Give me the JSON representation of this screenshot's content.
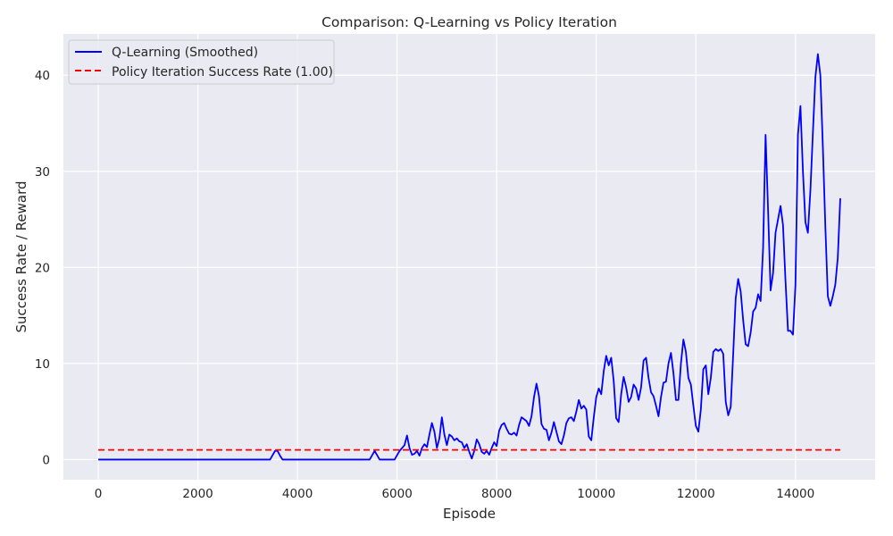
{
  "chart_data": {
    "type": "line",
    "title": "Comparison: Q-Learning vs Policy Iteration",
    "xlabel": "Episode",
    "ylabel": "Success Rate / Reward",
    "xlim": [
      -700,
      15600
    ],
    "ylim": [
      -2.1,
      44.3
    ],
    "xticks": [
      0,
      2000,
      4000,
      6000,
      8000,
      10000,
      12000,
      14000
    ],
    "yticks": [
      0,
      10,
      20,
      30,
      40
    ],
    "grid": true,
    "legend_position": "top-left",
    "background": "#eaeaf2",
    "series": [
      {
        "name": "Q-Learning (Smoothed)",
        "color": "#0000ff",
        "style": "solid",
        "x": [
          0,
          3450,
          3550,
          3600,
          3650,
          3700,
          3750,
          5450,
          5550,
          5650,
          5950,
          6050,
          6150,
          6200,
          6250,
          6300,
          6350,
          6400,
          6450,
          6500,
          6550,
          6600,
          6650,
          6700,
          6750,
          6800,
          6850,
          6900,
          6950,
          7000,
          7050,
          7100,
          7150,
          7200,
          7250,
          7300,
          7350,
          7400,
          7450,
          7500,
          7550,
          7600,
          7650,
          7700,
          7750,
          7800,
          7850,
          7900,
          7950,
          8000,
          8050,
          8100,
          8150,
          8200,
          8250,
          8300,
          8350,
          8400,
          8450,
          8500,
          8550,
          8600,
          8650,
          8700,
          8750,
          8800,
          8850,
          8900,
          8950,
          9000,
          9050,
          9100,
          9150,
          9200,
          9250,
          9300,
          9350,
          9400,
          9450,
          9500,
          9550,
          9600,
          9650,
          9700,
          9750,
          9800,
          9850,
          9900,
          9950,
          10000,
          10050,
          10100,
          10150,
          10200,
          10250,
          10300,
          10350,
          10400,
          10450,
          10500,
          10550,
          10600,
          10650,
          10700,
          10750,
          10800,
          10850,
          10900,
          10950,
          11000,
          11050,
          11100,
          11150,
          11200,
          11250,
          11300,
          11350,
          11400,
          11450,
          11500,
          11550,
          11600,
          11650,
          11700,
          11750,
          11800,
          11850,
          11900,
          11950,
          12000,
          12050,
          12100,
          12150,
          12200,
          12250,
          12300,
          12350,
          12400,
          12450,
          12500,
          12550,
          12600,
          12650,
          12700,
          12750,
          12800,
          12850,
          12900,
          12950,
          13000,
          13050,
          13100,
          13150,
          13200,
          13250,
          13300,
          13350,
          13400,
          13450,
          13500,
          13550,
          13600,
          13650,
          13700,
          13750,
          13800,
          13850,
          13900,
          13950,
          14000,
          14050,
          14100,
          14150,
          14200,
          14250,
          14300,
          14350,
          14400,
          14450,
          14500,
          14550,
          14600,
          14650,
          14700,
          14750,
          14800,
          14850,
          14900
        ],
        "y": [
          0,
          0,
          0.9,
          0.9,
          0.4,
          0,
          0,
          0,
          0.9,
          0,
          0,
          0.9,
          1.5,
          2.5,
          1.2,
          0.5,
          0.6,
          0.9,
          0.4,
          1.2,
          1.6,
          1.3,
          2.6,
          3.8,
          2.9,
          1.2,
          2.2,
          4.4,
          2.6,
          1.5,
          2.6,
          2.4,
          2.0,
          2.2,
          1.9,
          1.8,
          1.2,
          1.6,
          0.8,
          0.1,
          0.9,
          2.1,
          1.6,
          0.8,
          0.6,
          0.9,
          0.5,
          1.2,
          1.8,
          1.4,
          3.0,
          3.6,
          3.8,
          3.2,
          2.7,
          2.6,
          2.8,
          2.5,
          3.6,
          4.4,
          4.2,
          4.0,
          3.5,
          4.5,
          6.5,
          7.9,
          6.6,
          3.7,
          3.2,
          3.1,
          2.0,
          2.8,
          3.9,
          2.9,
          1.9,
          1.6,
          2.5,
          3.8,
          4.3,
          4.4,
          4.0,
          5.0,
          6.2,
          5.3,
          5.6,
          5.2,
          2.4,
          2.0,
          4.4,
          6.5,
          7.4,
          6.8,
          9.2,
          10.8,
          9.8,
          10.6,
          8.2,
          4.3,
          3.9,
          6.8,
          8.6,
          7.5,
          6.0,
          6.5,
          7.8,
          7.4,
          6.2,
          7.5,
          10.3,
          10.6,
          8.5,
          7.0,
          6.6,
          5.6,
          4.5,
          6.5,
          8.0,
          8.1,
          10.0,
          11.1,
          9.0,
          6.2,
          6.2,
          10.0,
          12.5,
          11.2,
          8.5,
          7.8,
          5.6,
          3.5,
          2.9,
          5.2,
          9.4,
          9.8,
          6.8,
          8.5,
          11.2,
          11.5,
          11.3,
          11.5,
          11.0,
          6.0,
          4.6,
          5.5,
          11.0,
          16.8,
          18.8,
          17.5,
          14.5,
          12.0,
          11.8,
          13.2,
          15.4,
          15.8,
          17.2,
          16.5,
          22.0,
          33.8,
          26.0,
          17.6,
          19.4,
          23.6,
          25.0,
          26.4,
          24.4,
          18.6,
          13.4,
          13.4,
          13.0,
          18.2,
          33.8,
          36.8,
          30.0,
          24.7,
          23.6,
          28.0,
          34.0,
          39.8,
          42.2,
          40.0,
          32.6,
          24.3,
          17.0,
          16.0,
          17.0,
          18.2,
          21.0,
          27.2
        ]
      },
      {
        "name": "Policy Iteration Success Rate (1.00)",
        "color": "#ff0000",
        "style": "dashed",
        "x": [
          0,
          14900
        ],
        "y": [
          1.0,
          1.0
        ]
      }
    ]
  }
}
